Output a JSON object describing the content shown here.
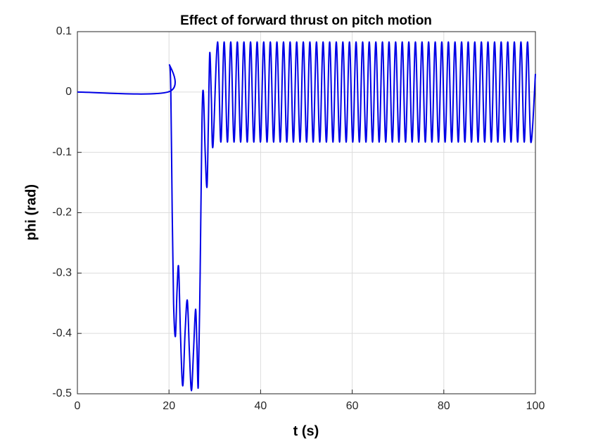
{
  "chart_data": {
    "type": "line",
    "title": "Effect of forward thrust on pitch motion",
    "xlabel": "t (s)",
    "ylabel": "phi (rad)",
    "color": "#0000e6",
    "grid": true,
    "xlim": [
      0,
      100
    ],
    "xticks": [
      0,
      20,
      40,
      60,
      80,
      100
    ],
    "ylim": [
      -0.5,
      0.1
    ],
    "yticks": [
      -0.5,
      -0.4,
      -0.3,
      -0.2,
      -0.1,
      0,
      0.1
    ],
    "x": [
      0,
      19.8,
      20.1,
      20.4,
      20.7,
      21.0,
      21.4,
      21.75,
      22.1,
      22.5,
      23.0,
      23.5,
      24.0,
      24.45,
      24.9,
      25.35,
      25.8,
      26.1,
      26.4,
      26.8,
      27.2,
      27.5,
      27.9,
      28.3,
      28.6,
      28.9,
      29.25,
      29.6,
      30.6,
      31.32,
      32.04,
      32.76,
      33.48,
      34.2,
      34.92,
      35.64,
      36.36,
      37.08,
      37.8,
      38.52,
      39.24,
      39.96,
      40.68,
      41.4,
      42.12,
      42.84,
      43.56,
      44.28,
      45.0,
      45.72,
      46.44,
      47.16,
      47.88,
      48.6,
      49.32,
      50.04,
      50.76,
      51.48,
      52.2,
      52.92,
      53.64,
      54.36,
      55.08,
      55.8,
      56.52,
      57.24,
      57.96,
      58.68,
      59.4,
      60.12,
      60.84,
      61.56,
      62.28,
      63.0,
      63.72,
      64.44,
      65.16,
      65.88,
      66.6,
      67.32,
      68.04,
      68.76,
      69.48,
      70.2,
      70.92,
      71.64,
      72.36,
      73.08,
      73.8,
      74.52,
      75.24,
      75.96,
      76.68,
      77.4,
      78.12,
      78.84,
      79.56,
      80.28,
      81.0,
      81.72,
      82.44,
      83.16,
      83.88,
      84.6,
      85.32,
      86.04,
      86.76,
      87.48,
      88.2,
      88.92,
      89.64,
      90.36,
      91.08,
      91.8,
      92.52,
      93.24,
      93.96,
      94.68,
      95.4,
      96.12,
      96.84,
      97.56,
      98.28,
      99.0,
      100
    ],
    "values": [
      0,
      0,
      0.045,
      0,
      -0.2,
      -0.35,
      -0.405,
      -0.33,
      -0.29,
      -0.4,
      -0.487,
      -0.4,
      -0.345,
      -0.43,
      -0.495,
      -0.43,
      -0.36,
      -0.42,
      -0.487,
      -0.3,
      -0.05,
      0,
      -0.1,
      -0.157,
      -0.05,
      0.065,
      -0.01,
      -0.09,
      0.083,
      -0.083,
      0.083,
      -0.083,
      0.083,
      -0.083,
      0.083,
      -0.083,
      0.083,
      -0.083,
      0.083,
      -0.083,
      0.083,
      -0.083,
      0.083,
      -0.083,
      0.083,
      -0.083,
      0.083,
      -0.083,
      0.083,
      -0.083,
      0.083,
      -0.083,
      0.083,
      -0.083,
      0.083,
      -0.083,
      0.083,
      -0.083,
      0.083,
      -0.083,
      0.083,
      -0.083,
      0.083,
      -0.083,
      0.083,
      -0.083,
      0.083,
      -0.083,
      0.083,
      -0.083,
      0.083,
      -0.083,
      0.083,
      -0.083,
      0.083,
      -0.083,
      0.083,
      -0.083,
      0.083,
      -0.083,
      0.083,
      -0.083,
      0.083,
      -0.083,
      0.083,
      -0.083,
      0.083,
      -0.083,
      0.083,
      -0.083,
      0.083,
      -0.083,
      0.083,
      -0.083,
      0.083,
      -0.083,
      0.083,
      -0.083,
      0.083,
      -0.083,
      0.083,
      -0.083,
      0.083,
      -0.083,
      0.083,
      -0.083,
      0.083,
      -0.083,
      0.083,
      -0.083,
      0.083,
      -0.083,
      0.083,
      -0.083,
      0.083,
      -0.083,
      0.083,
      -0.083,
      0.083,
      -0.083,
      0.083,
      -0.083,
      0.083,
      -0.083,
      0.03
    ]
  }
}
